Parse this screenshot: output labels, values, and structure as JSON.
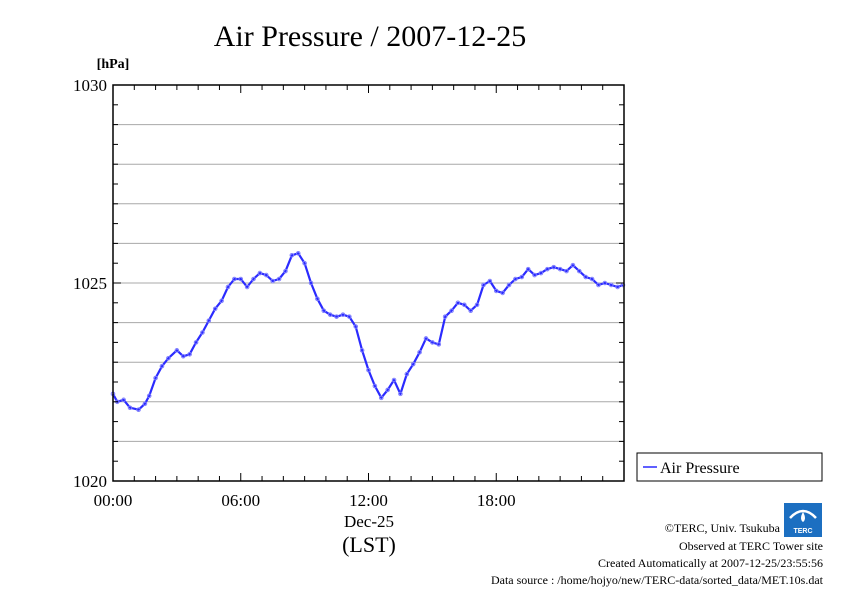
{
  "colors": {
    "series": "#2b2bff",
    "grid": "#a8a8a8",
    "axis": "#000000"
  },
  "chart_data": {
    "type": "line",
    "title": "Air Pressure / 2007-12-25",
    "ylabel": "[hPa]",
    "xlabel": "Dec-25",
    "xlabel2": "(LST)",
    "ylim": [
      1020,
      1030
    ],
    "xlim": [
      0,
      24
    ],
    "yticks": [
      {
        "value": 1020,
        "label": "1020"
      },
      {
        "value": 1025,
        "label": "1025"
      },
      {
        "value": 1030,
        "label": "1030"
      }
    ],
    "xticks": [
      {
        "value": 0,
        "label": "00:00"
      },
      {
        "value": 6,
        "label": "06:00"
      },
      {
        "value": 12,
        "label": "12:00"
      },
      {
        "value": 18,
        "label": "18:00"
      }
    ],
    "grid": true,
    "legend": {
      "position": "right",
      "label": "Air Pressure"
    },
    "series": [
      {
        "name": "Air Pressure",
        "x": [
          0,
          0.2,
          0.5,
          0.8,
          1.2,
          1.5,
          1.7,
          2.0,
          2.3,
          2.6,
          3.0,
          3.3,
          3.6,
          3.9,
          4.2,
          4.5,
          4.8,
          5.1,
          5.4,
          5.7,
          6.0,
          6.3,
          6.6,
          6.9,
          7.2,
          7.5,
          7.8,
          8.1,
          8.4,
          8.7,
          9.0,
          9.3,
          9.6,
          9.9,
          10.2,
          10.5,
          10.8,
          11.1,
          11.4,
          11.7,
          12.0,
          12.3,
          12.6,
          12.9,
          13.2,
          13.5,
          13.8,
          14.1,
          14.4,
          14.7,
          15.0,
          15.3,
          15.6,
          15.9,
          16.2,
          16.5,
          16.8,
          17.1,
          17.4,
          17.7,
          18.0,
          18.3,
          18.6,
          18.9,
          19.2,
          19.5,
          19.8,
          20.1,
          20.4,
          20.7,
          21.0,
          21.3,
          21.6,
          21.9,
          22.2,
          22.5,
          22.8,
          23.1,
          23.4,
          23.7,
          23.95
        ],
        "values": [
          1022.2,
          1022.0,
          1022.05,
          1021.85,
          1021.8,
          1021.95,
          1022.15,
          1022.6,
          1022.9,
          1023.1,
          1023.3,
          1023.15,
          1023.2,
          1023.5,
          1023.75,
          1024.05,
          1024.35,
          1024.55,
          1024.9,
          1025.1,
          1025.1,
          1024.9,
          1025.1,
          1025.25,
          1025.2,
          1025.05,
          1025.1,
          1025.3,
          1025.7,
          1025.75,
          1025.5,
          1025.0,
          1024.6,
          1024.3,
          1024.2,
          1024.15,
          1024.2,
          1024.15,
          1023.9,
          1023.3,
          1022.8,
          1022.4,
          1022.1,
          1022.3,
          1022.55,
          1022.2,
          1022.7,
          1022.95,
          1023.25,
          1023.6,
          1023.5,
          1023.45,
          1024.15,
          1024.3,
          1024.5,
          1024.45,
          1024.3,
          1024.45,
          1024.95,
          1025.05,
          1024.8,
          1024.75,
          1024.95,
          1025.1,
          1025.15,
          1025.35,
          1025.2,
          1025.25,
          1025.35,
          1025.4,
          1025.35,
          1025.3,
          1025.45,
          1025.3,
          1025.15,
          1025.1,
          1024.95,
          1025.0,
          1024.95,
          1024.9,
          1024.95
        ]
      }
    ]
  },
  "credits": {
    "line1": "©TERC, Univ. Tsukuba",
    "line2": "Observed at TERC Tower site",
    "line3": "Created Automatically at 2007-12-25/23:55:56",
    "line4": "Data source : /home/hojyo/new/TERC-data/sorted_data/MET.10s.dat",
    "logo_text": "TERC"
  }
}
